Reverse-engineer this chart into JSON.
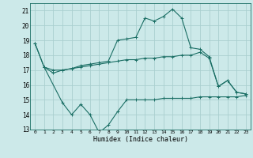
{
  "title": "",
  "xlabel": "Humidex (Indice chaleur)",
  "xlim": [
    -0.5,
    23.5
  ],
  "ylim": [
    13,
    21.5
  ],
  "yticks": [
    13,
    14,
    15,
    16,
    17,
    18,
    19,
    20,
    21
  ],
  "xticks": [
    0,
    1,
    2,
    3,
    4,
    5,
    6,
    7,
    8,
    9,
    10,
    11,
    12,
    13,
    14,
    15,
    16,
    17,
    18,
    19,
    20,
    21,
    22,
    23
  ],
  "background_color": "#cce9e9",
  "grid_color": "#aacfcf",
  "line_color": "#1a6e64",
  "line1_x": [
    0,
    1,
    2,
    3,
    4,
    5,
    6,
    7,
    8,
    9,
    10,
    11,
    12,
    13,
    14,
    15,
    16,
    17,
    18,
    19,
    20,
    21,
    22,
    23
  ],
  "line1_y": [
    18.8,
    17.2,
    17.0,
    17.0,
    17.1,
    17.2,
    17.3,
    17.4,
    17.5,
    17.6,
    17.7,
    17.7,
    17.8,
    17.8,
    17.9,
    17.9,
    18.0,
    18.0,
    18.2,
    17.8,
    15.9,
    16.3,
    15.5,
    15.4
  ],
  "line2_x": [
    0,
    1,
    2,
    3,
    4,
    5,
    6,
    7,
    8,
    9,
    10,
    11,
    12,
    13,
    14,
    15,
    16,
    17,
    18,
    19,
    20,
    21,
    22,
    23
  ],
  "line2_y": [
    18.8,
    17.2,
    16.8,
    17.0,
    17.1,
    17.3,
    17.4,
    17.5,
    17.6,
    19.0,
    19.1,
    19.2,
    20.5,
    20.3,
    20.6,
    21.1,
    20.5,
    18.5,
    18.4,
    17.9,
    15.9,
    16.3,
    15.5,
    15.4
  ],
  "line3_x": [
    1,
    3,
    4,
    5,
    6,
    7,
    8,
    9,
    10,
    11,
    12,
    13,
    14,
    15,
    16,
    17,
    18,
    19,
    20,
    21,
    22,
    23
  ],
  "line3_y": [
    17.2,
    14.8,
    14.0,
    14.7,
    14.0,
    12.8,
    13.3,
    14.2,
    15.0,
    15.0,
    15.0,
    15.0,
    15.1,
    15.1,
    15.1,
    15.1,
    15.2,
    15.2,
    15.2,
    15.2,
    15.2,
    15.3
  ]
}
